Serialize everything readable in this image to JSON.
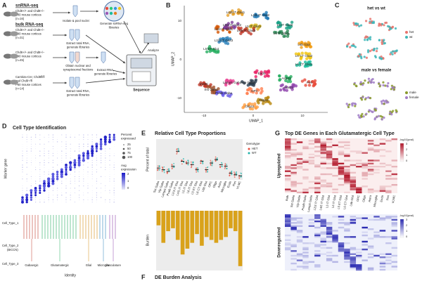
{
  "panel_a": {
    "label": "A",
    "snrna_title": "snRNA-seq",
    "snrna_desc": [
      "Chd8+/+ and Chd8+/−",
      "P40 mouse cortices",
      "(n=16)"
    ],
    "snrna_step1": "Isolate & pool nuclei",
    "snrna_step2": [
      "Generate snRNA-seq",
      "libraries"
    ],
    "bulk_title": "bulk RNA-seq",
    "bulk1_desc": [
      "Chd8+/+ and Chd8+/−",
      "P40 mouse cortices",
      "(n=31)"
    ],
    "bulk1_step": [
      "Extract total RNA,",
      "generate libraries"
    ],
    "bulk2_desc": [
      "Chd8+/+ and Chd8+/−",
      "P40 mouse cortices",
      "(n=45)"
    ],
    "bulk2_step1": [
      "Obtain nuclear and",
      "synaptosomal fractions"
    ],
    "bulk2_step2": [
      "Extract RNA,",
      "generate libraries"
    ],
    "bulk3_desc": [
      "Camk2a-Cre; Chd8fl/fl",
      "and Chd8+/fl",
      "P60 mouse cortices",
      "(n=14)"
    ],
    "bulk3_step": [
      "Extract total RNA,",
      "generate libraries"
    ],
    "analyze": "Analyze",
    "sequence": "Sequence"
  },
  "panel_b": {
    "label": "B",
    "x_label": "UMAP_1",
    "y_label": "UMAP_2",
    "x_ticks": [
      "-10",
      "0",
      "10"
    ],
    "y_ticks": [
      "10",
      "0",
      "-10"
    ],
    "clusters": [
      "L4/5 IT Glut1",
      "L6 IT Glut1",
      "L5 IT Glut1",
      "L2/3 IT Glut1",
      "L2/3 IT Glut2",
      "L4/5 IT Glut2",
      "L2/3 IT Glut3",
      "L5 IT Glut2",
      "L4/5 IT Glut3",
      "L5 ET Glut",
      "L6b Glut",
      "L6 CT Glut2",
      "L6 CT Glut1",
      "Endo",
      "Astro2",
      "Astro1",
      "Peri",
      "VLMC",
      "Lamp5 Gaba",
      "Vip Gaba",
      "Sst Gaba",
      "Pvalb Gaba",
      "OPC",
      "Oligo2",
      "Oligo1"
    ]
  },
  "panel_c": {
    "label": "C",
    "top_title": "het vs wt",
    "top_legend": [
      "het",
      "wt"
    ],
    "bottom_title": "male vs female",
    "bottom_legend": [
      "male",
      "female"
    ]
  },
  "panel_d": {
    "label": "D",
    "title": "Cell Type Identification",
    "y_label": "Marker gene",
    "size_title": [
      "Percent",
      "expressed"
    ],
    "size_ticks": [
      "25",
      "50",
      "75",
      "100"
    ],
    "color_title": [
      "Avg",
      "expression"
    ],
    "color_ticks": [
      "2",
      "1",
      "0"
    ],
    "x_label": "Identity",
    "rows": [
      "Cell_Type_1",
      "Cell_Type_2",
      "(BICCN)",
      "Cell_Type_3"
    ],
    "groups": [
      "Gabaergic",
      "Glutamatergic",
      "Glial",
      "Microglia",
      "Vasculature"
    ]
  },
  "panel_e": {
    "label": "E",
    "title": "Relative Cell Type Proportions",
    "y_label": "Percent of total",
    "legend_title": "Genotype",
    "legend": [
      "HET",
      "WT"
    ],
    "categories": [
      "Sst Gaba",
      "Vip Gaba",
      "Lamp5 Gaba",
      "Pvalb Gaba",
      "L2/3 IT Glut",
      "L4/5 IT Glut",
      "L5 IT Glut",
      "L6 IT Glut",
      "L5 ET Glut",
      "L6 CT Glut",
      "L6b Glut",
      "OPC",
      "Oligo",
      "Astro",
      "Microglia",
      "Endo",
      "Peri",
      "VLMC"
    ]
  },
  "panel_f": {
    "label": "F",
    "title": "DE Burden Analysis",
    "y_label": "Burden"
  },
  "panel_g": {
    "label": "G",
    "title": "Top DE Genes in Each Glutamatergic Cell Type",
    "up": "Upregulated",
    "down": "Downregulated",
    "legend_title": "-log10(pval)",
    "legend_ticks": [
      "3",
      "2",
      "1",
      "0"
    ],
    "columns": [
      "Bulk",
      "Sst Gaba",
      "Vip Gaba",
      "Pvalb Gaba",
      "Lamp5 Gaba",
      "L2/3 IT Glut",
      "L4/5 IT Glut",
      "L5 IT Glut",
      "L6 IT Glut",
      "L5 ET Glut",
      "L6 CT Glut",
      "L6b Glut",
      "OPC",
      "Oligo",
      "Astro",
      "Microglia",
      "Endo",
      "Peri",
      "VLMC"
    ]
  }
}
